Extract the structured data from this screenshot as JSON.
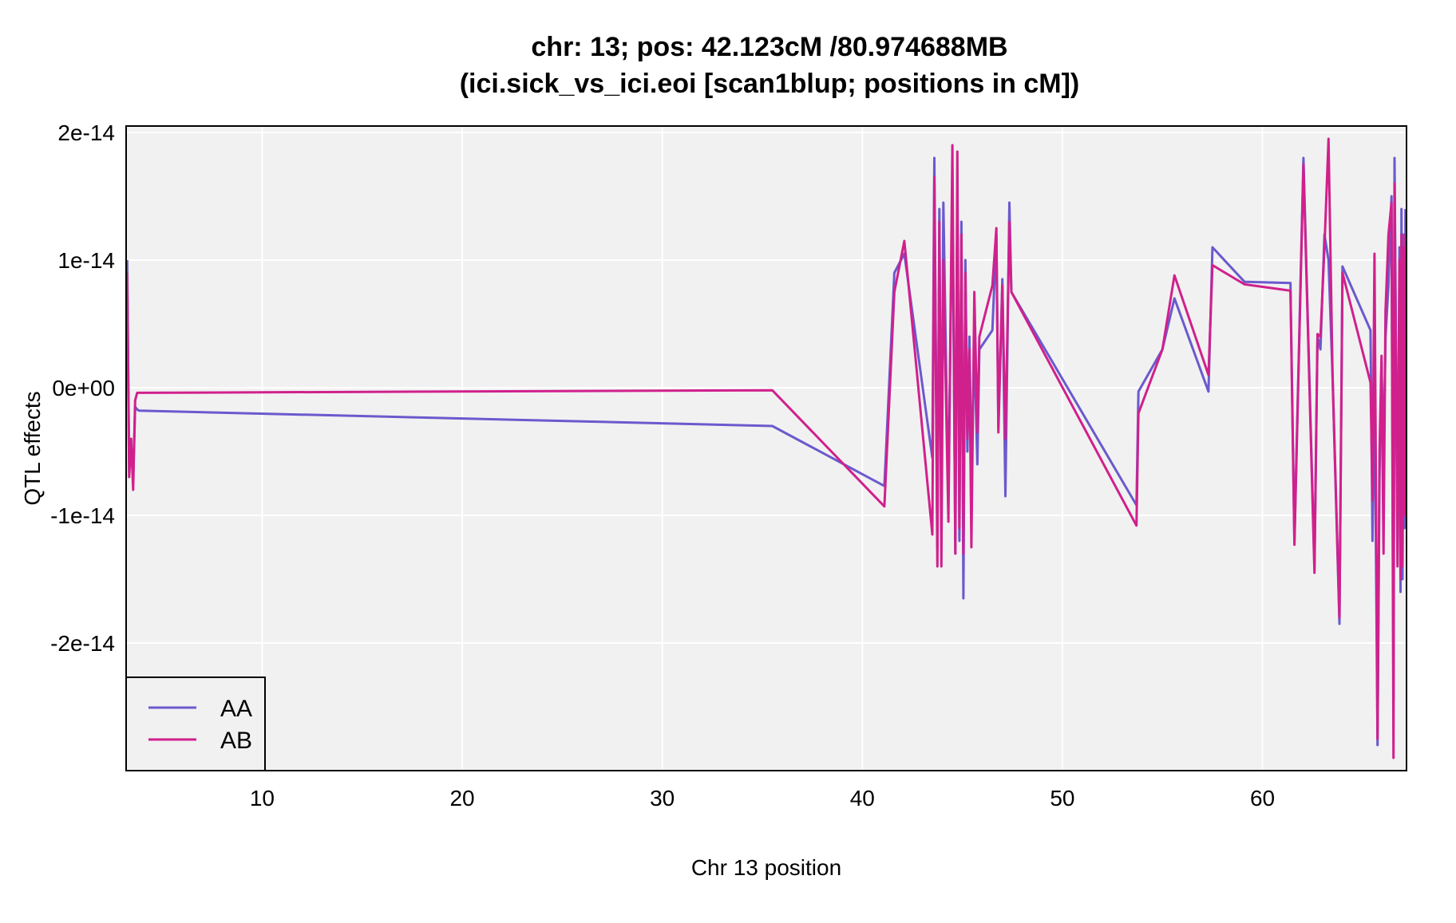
{
  "chart_data": {
    "type": "line",
    "title": "chr: 13; pos: 42.123cM /80.974688MB",
    "subtitle": "(ici.sick_vs_ici.eoi [scan1blup; positions in cM])",
    "xlabel": "Chr 13 position",
    "ylabel": "QTL effects",
    "xlim": [
      3.2,
      67.2
    ],
    "ylim": [
      -3e-14,
      2.05e-14
    ],
    "x_ticks": [
      10,
      20,
      30,
      40,
      50,
      60
    ],
    "x_tick_labels": [
      "10",
      "20",
      "30",
      "40",
      "50",
      "60"
    ],
    "y_ticks": [
      2e-14,
      1e-14,
      0,
      -1e-14,
      -2e-14
    ],
    "y_tick_labels": [
      "2e-14",
      "1e-14",
      "0e+00",
      "-1e-14",
      "-2e-14"
    ],
    "grid": true,
    "legend_position": "bottom-left",
    "series": [
      {
        "name": "AA",
        "color": "#6a5acd",
        "x": [
          3.25,
          3.35,
          3.45,
          3.55,
          3.65,
          3.75,
          3.85,
          35.5,
          41.1,
          41.6,
          42.1,
          43.5,
          43.6,
          43.75,
          43.85,
          43.95,
          44.05,
          44.3,
          44.5,
          44.65,
          44.75,
          44.85,
          44.95,
          45.05,
          45.15,
          45.25,
          45.35,
          45.45,
          45.6,
          45.75,
          45.85,
          46.5,
          46.7,
          46.8,
          47.0,
          47.15,
          47.35,
          47.45,
          53.7,
          53.8,
          55.0,
          55.6,
          57.3,
          57.5,
          59.1,
          61.4,
          61.6,
          62.05,
          62.6,
          62.75,
          62.9,
          63.1,
          63.3,
          63.5,
          63.85,
          64.0,
          65.4,
          65.5,
          65.6,
          65.75,
          65.85,
          65.95,
          66.05,
          66.15,
          66.3,
          66.45,
          66.55,
          66.6,
          66.75,
          66.85,
          66.9,
          66.95,
          67.0,
          67.05,
          67.1,
          67.15
        ],
        "y": [
          1e-14,
          -6.5e-15,
          -5e-15,
          -7e-15,
          -1.5e-15,
          -1.7e-15,
          -1.8e-15,
          -3e-15,
          -7.7e-15,
          9e-15,
          1.05e-14,
          -5.5e-15,
          1.8e-14,
          -1.25e-14,
          1.4e-14,
          -1e-14,
          1.45e-14,
          -9e-15,
          1.6e-14,
          -1.3e-14,
          1.5e-14,
          -1.2e-14,
          1.3e-14,
          -1.65e-14,
          1e-14,
          -5e-15,
          4e-15,
          -6e-15,
          3e-15,
          -6e-15,
          3e-15,
          4.5e-15,
          1.2e-14,
          -3e-15,
          8.5e-15,
          -8.5e-15,
          1.45e-14,
          7.5e-15,
          -9.2e-15,
          -3e-16,
          3e-15,
          7e-15,
          -3e-16,
          1.1e-14,
          8.3e-15,
          8.2e-15,
          -1.2e-14,
          1.8e-14,
          -1.4e-14,
          4e-15,
          3e-15,
          1.2e-14,
          1e-14,
          1e-15,
          -1.85e-14,
          9.5e-15,
          4.5e-15,
          -1.2e-14,
          1.2e-15,
          -2.8e-14,
          -7e-15,
          2e-15,
          -6e-15,
          4e-15,
          8e-15,
          1.5e-14,
          -2.45e-14,
          1.8e-14,
          -1.2e-14,
          1.1e-14,
          -1.6e-14,
          1.4e-14,
          -1.5e-14,
          1.2e-14,
          -1.1e-14,
          1.4e-14
        ]
      },
      {
        "name": "AB",
        "color": "#d0208c",
        "x": [
          3.25,
          3.35,
          3.45,
          3.55,
          3.65,
          3.75,
          3.85,
          35.5,
          41.1,
          41.6,
          42.1,
          43.5,
          43.6,
          43.75,
          43.85,
          43.95,
          44.05,
          44.3,
          44.5,
          44.65,
          44.75,
          44.85,
          44.95,
          45.05,
          45.15,
          45.25,
          45.35,
          45.45,
          45.6,
          45.75,
          45.85,
          46.5,
          46.7,
          46.8,
          47.0,
          47.15,
          47.35,
          47.45,
          53.7,
          53.8,
          55.0,
          55.6,
          57.3,
          57.5,
          59.1,
          61.4,
          61.6,
          62.05,
          62.6,
          62.75,
          62.9,
          63.1,
          63.3,
          63.5,
          63.85,
          64.0,
          65.4,
          65.5,
          65.6,
          65.75,
          65.85,
          65.95,
          66.05,
          66.15,
          66.3,
          66.45,
          66.55,
          66.6,
          66.75,
          66.85,
          66.9,
          66.95,
          67.0,
          67.05,
          67.1,
          67.15
        ],
        "y": [
          9e-15,
          -7e-15,
          -4e-15,
          -8e-15,
          -1e-15,
          -4e-16,
          -4e-16,
          -2e-16,
          -9.3e-15,
          7.5e-15,
          1.15e-14,
          -1.15e-14,
          1.65e-14,
          -1.4e-14,
          1.3e-14,
          -1.4e-14,
          1e-14,
          -1.05e-14,
          1.9e-14,
          -1.3e-14,
          1.85e-14,
          -1.1e-14,
          1.2e-14,
          -1.3e-14,
          9e-15,
          -4e-15,
          3e-15,
          -1.25e-14,
          7.5e-15,
          -3.5e-15,
          4e-15,
          8e-15,
          1.25e-14,
          -3.5e-15,
          8e-15,
          -4e-15,
          1.3e-14,
          7.5e-15,
          -1.08e-14,
          -2e-15,
          3e-15,
          8.8e-15,
          1e-15,
          9.6e-15,
          8.1e-15,
          7.6e-15,
          -1.23e-14,
          1.75e-14,
          -1.45e-14,
          4.2e-15,
          4e-15,
          1.1e-14,
          1.95e-14,
          1.2e-15,
          -1.8e-14,
          9e-15,
          4e-16,
          -8.8e-15,
          1.05e-14,
          -2.75e-14,
          -5e-15,
          2.5e-15,
          -1.3e-14,
          6e-15,
          1.2e-14,
          1.45e-14,
          -2.9e-14,
          1.6e-14,
          -1.4e-14,
          1e-14,
          -1.5e-14,
          1.2e-14,
          -1.4e-14,
          1.1e-14,
          -1e-14,
          1.2e-14
        ]
      }
    ]
  }
}
